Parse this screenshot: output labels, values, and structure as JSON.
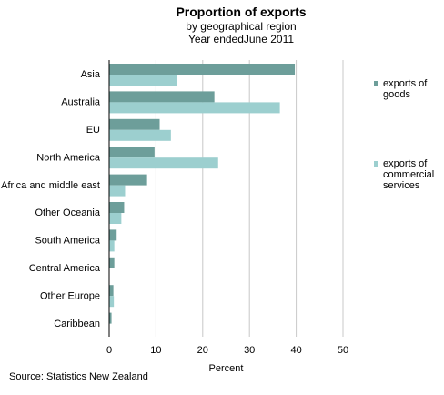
{
  "chart_data": {
    "type": "bar",
    "orientation": "horizontal",
    "title": "Proportion of exports",
    "subtitle_lines": [
      "by geographical  region",
      "Year endedJune 2011"
    ],
    "categories": [
      "Asia",
      "Australia",
      "EU",
      "North America",
      "Africa and middle east",
      "Other Oceania",
      "South America",
      "Central America",
      "Other Europe",
      "Caribbean"
    ],
    "series": [
      {
        "name_lines": [
          "exports of",
          "goods"
        ],
        "color": "#6d9e9a",
        "values": [
          39.7,
          22.5,
          10.8,
          9.7,
          8.1,
          3.2,
          1.6,
          1.1,
          0.9,
          0.5
        ]
      },
      {
        "name_lines": [
          "exports of",
          "commercial",
          "services"
        ],
        "color": "#9ccfcf",
        "values": [
          14.5,
          36.5,
          13.2,
          23.3,
          3.4,
          2.6,
          1.1,
          0.0,
          1.0,
          0.0
        ]
      }
    ],
    "xlabel": "Percent",
    "xlim": [
      0,
      50
    ],
    "xticks": [
      "0",
      "10",
      "20",
      "30",
      "40",
      "50"
    ],
    "grid": "vertical",
    "legend_position": "right"
  },
  "source": "Source: Statistics New Zealand"
}
